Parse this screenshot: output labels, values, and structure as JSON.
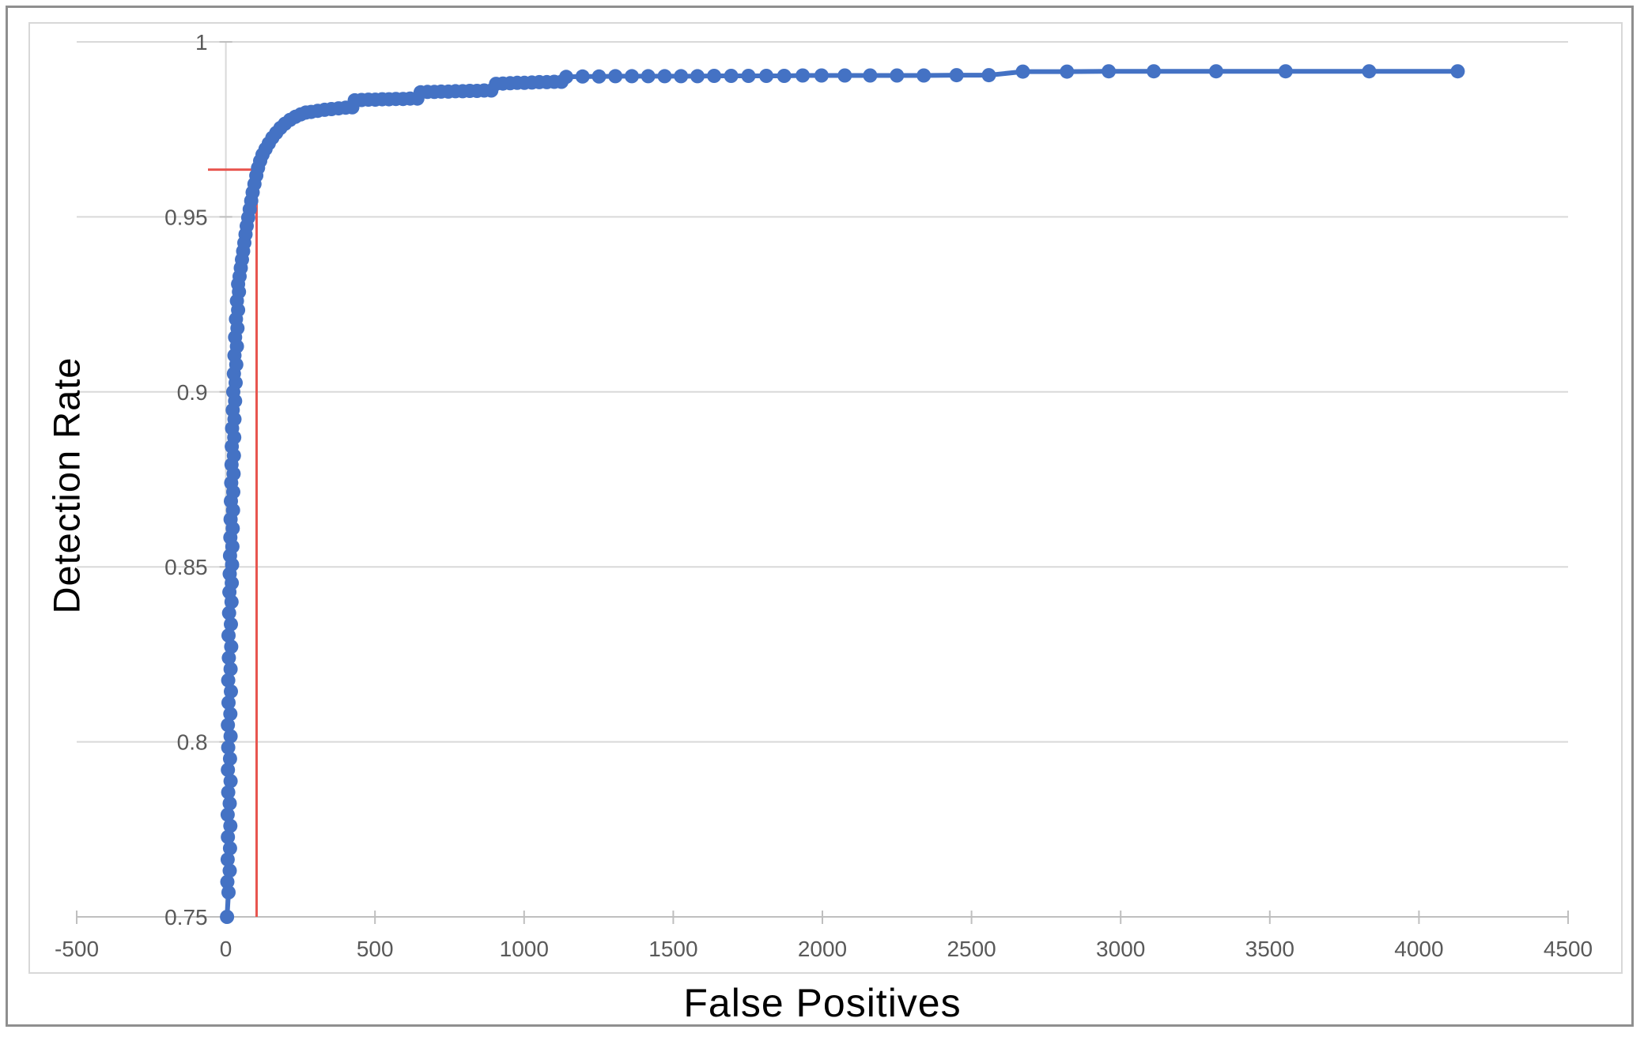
{
  "figure": {
    "x_axis": {
      "title": "False Positives",
      "tick_labels": [
        "-500",
        "0",
        "500",
        "1000",
        "1500",
        "2000",
        "2500",
        "3000",
        "3500",
        "4000",
        "4500"
      ]
    },
    "y_axis": {
      "title": "Detection Rate",
      "tick_labels": [
        "1",
        "0.95",
        "0.9",
        "0.85",
        "0.8",
        "0.75"
      ]
    },
    "colors": {
      "series": "#4472c4",
      "reference": "#e8554f",
      "gridline": "#d9d9d9",
      "axis_line": "#bfbfbf",
      "tick_text": "#595959",
      "title_text": "#000000"
    }
  },
  "chart_data": {
    "type": "scatter",
    "title": "",
    "xlabel": "False Positives",
    "ylabel": "Detection Rate",
    "xlim": [
      -500,
      4500
    ],
    "ylim": [
      0.75,
      1.0
    ],
    "x_ticks": [
      -500,
      0,
      500,
      1000,
      1500,
      2000,
      2500,
      3000,
      3500,
      4000,
      4500
    ],
    "y_ticks": [
      1,
      0.95,
      0.9,
      0.85,
      0.8,
      0.75
    ],
    "grid": "horizontal",
    "legend": false,
    "annotation": {
      "type": "crosshair",
      "fp": 103,
      "dr": 0.9635,
      "hline_fp_start": -60,
      "hline_fp_end": 118,
      "vline_dr_bottom": 0.75,
      "color": "#e8554f"
    },
    "series": [
      {
        "marker": "circle",
        "points": [
          [
            4,
            0.75
          ],
          [
            9,
            0.757
          ],
          [
            5,
            0.76
          ],
          [
            13,
            0.7632
          ],
          [
            6,
            0.7664
          ],
          [
            14,
            0.7696
          ],
          [
            7,
            0.7728
          ],
          [
            15,
            0.776
          ],
          [
            6,
            0.7792
          ],
          [
            13,
            0.7824
          ],
          [
            8,
            0.7856
          ],
          [
            16,
            0.7888
          ],
          [
            7,
            0.792
          ],
          [
            14,
            0.7952
          ],
          [
            8,
            0.7984
          ],
          [
            16,
            0.8016
          ],
          [
            7,
            0.8048
          ],
          [
            15,
            0.808
          ],
          [
            9,
            0.8112
          ],
          [
            17,
            0.8144
          ],
          [
            8,
            0.8176
          ],
          [
            16,
            0.8208
          ],
          [
            10,
            0.824
          ],
          [
            18,
            0.8272
          ],
          [
            9,
            0.8304
          ],
          [
            17,
            0.8336
          ],
          [
            11,
            0.8368
          ],
          [
            19,
            0.84
          ],
          [
            12,
            0.8428
          ],
          [
            20,
            0.8454
          ],
          [
            13,
            0.848
          ],
          [
            21,
            0.8506
          ],
          [
            14,
            0.8532
          ],
          [
            22,
            0.8558
          ],
          [
            15,
            0.8584
          ],
          [
            23,
            0.861
          ],
          [
            16,
            0.8636
          ],
          [
            24,
            0.8662
          ],
          [
            17,
            0.8688
          ],
          [
            25,
            0.8714
          ],
          [
            18,
            0.874
          ],
          [
            26,
            0.8766
          ],
          [
            19,
            0.8792
          ],
          [
            27,
            0.8818
          ],
          [
            20,
            0.8844
          ],
          [
            28,
            0.887
          ],
          [
            21,
            0.8896
          ],
          [
            29,
            0.8922
          ],
          [
            23,
            0.8948
          ],
          [
            31,
            0.8974
          ],
          [
            25,
            0.9
          ],
          [
            33,
            0.9026
          ],
          [
            27,
            0.9052
          ],
          [
            35,
            0.9078
          ],
          [
            29,
            0.9104
          ],
          [
            37,
            0.913
          ],
          [
            31,
            0.9156
          ],
          [
            39,
            0.9182
          ],
          [
            34,
            0.9208
          ],
          [
            41,
            0.9234
          ],
          [
            37,
            0.926
          ],
          [
            44,
            0.9286
          ],
          [
            41,
            0.9308
          ],
          [
            46,
            0.933
          ],
          [
            50,
            0.9354
          ],
          [
            54,
            0.9378
          ],
          [
            58,
            0.9402
          ],
          [
            62,
            0.9426
          ],
          [
            66,
            0.945
          ],
          [
            70,
            0.9474
          ],
          [
            75,
            0.9498
          ],
          [
            80,
            0.9522
          ],
          [
            85,
            0.9546
          ],
          [
            90,
            0.957
          ],
          [
            96,
            0.9594
          ],
          [
            102,
            0.9618
          ],
          [
            108,
            0.964
          ],
          [
            115,
            0.966
          ],
          [
            123,
            0.9678
          ],
          [
            133,
            0.9694
          ],
          [
            144,
            0.971
          ],
          [
            156,
            0.9726
          ],
          [
            169,
            0.974
          ],
          [
            183,
            0.9754
          ],
          [
            198,
            0.9766
          ],
          [
            215,
            0.9777
          ],
          [
            233,
            0.9786
          ],
          [
            251,
            0.9793
          ],
          [
            268,
            0.9798
          ],
          [
            286,
            0.98
          ],
          [
            308,
            0.9803
          ],
          [
            331,
            0.9806
          ],
          [
            354,
            0.9808
          ],
          [
            378,
            0.981
          ],
          [
            402,
            0.9812
          ],
          [
            424,
            0.9813
          ],
          [
            432,
            0.9833
          ],
          [
            455,
            0.9834
          ],
          [
            478,
            0.9835
          ],
          [
            501,
            0.9835
          ],
          [
            524,
            0.9836
          ],
          [
            547,
            0.9836
          ],
          [
            570,
            0.9837
          ],
          [
            594,
            0.9837
          ],
          [
            618,
            0.9838
          ],
          [
            642,
            0.9838
          ],
          [
            653,
            0.9856
          ],
          [
            676,
            0.9857
          ],
          [
            699,
            0.9857
          ],
          [
            722,
            0.9858
          ],
          [
            746,
            0.9858
          ],
          [
            770,
            0.9859
          ],
          [
            794,
            0.9859
          ],
          [
            818,
            0.986
          ],
          [
            842,
            0.986
          ],
          [
            866,
            0.9861
          ],
          [
            890,
            0.9861
          ],
          [
            906,
            0.988
          ],
          [
            929,
            0.9881
          ],
          [
            953,
            0.9882
          ],
          [
            977,
            0.9883
          ],
          [
            1001,
            0.9883
          ],
          [
            1026,
            0.9884
          ],
          [
            1051,
            0.9885
          ],
          [
            1076,
            0.9885
          ],
          [
            1101,
            0.9886
          ],
          [
            1125,
            0.9886
          ],
          [
            1141,
            0.99
          ],
          [
            1196,
            0.9901
          ],
          [
            1251,
            0.9901
          ],
          [
            1306,
            0.9902
          ],
          [
            1361,
            0.9902
          ],
          [
            1416,
            0.9902
          ],
          [
            1471,
            0.9902
          ],
          [
            1526,
            0.9902
          ],
          [
            1581,
            0.9902
          ],
          [
            1637,
            0.9903
          ],
          [
            1694,
            0.9903
          ],
          [
            1752,
            0.9903
          ],
          [
            1812,
            0.9903
          ],
          [
            1872,
            0.9903
          ],
          [
            1934,
            0.9904
          ],
          [
            1997,
            0.9904
          ],
          [
            2075,
            0.9904
          ],
          [
            2160,
            0.9904
          ],
          [
            2250,
            0.9904
          ],
          [
            2340,
            0.9904
          ],
          [
            2450,
            0.9905
          ],
          [
            2558,
            0.9905
          ],
          [
            2672,
            0.9915
          ],
          [
            2820,
            0.9915
          ],
          [
            2960,
            0.9916
          ],
          [
            3111,
            0.9916
          ],
          [
            3320,
            0.9916
          ],
          [
            3553,
            0.9916
          ],
          [
            3833,
            0.9916
          ],
          [
            4130,
            0.9916
          ]
        ]
      }
    ]
  }
}
